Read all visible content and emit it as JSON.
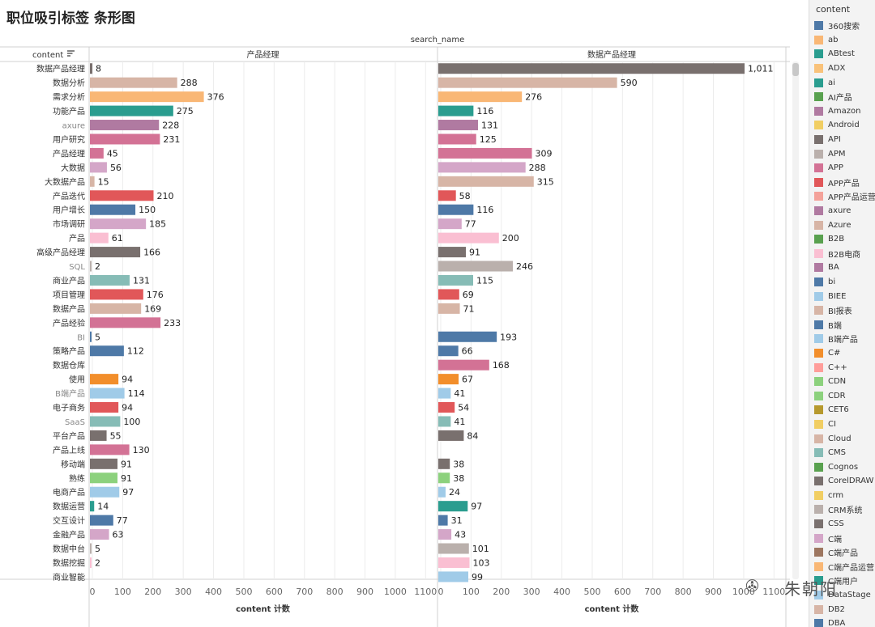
{
  "title": "职位吸引标签 条形图",
  "header_field": "search_name",
  "row_header": "content",
  "sort_icon": "sort-icon",
  "legend": {
    "title": "content",
    "items": [
      {
        "label": "360搜索",
        "color": "#4e79a7"
      },
      {
        "label": "ab",
        "color": "#f9b775"
      },
      {
        "label": "ABtest",
        "color": "#2a9d8f"
      },
      {
        "label": "ADX",
        "color": "#f9c27a"
      },
      {
        "label": "ai",
        "color": "#2a9d8f"
      },
      {
        "label": "AI产品",
        "color": "#59a14f"
      },
      {
        "label": "Amazon",
        "color": "#b07aa1"
      },
      {
        "label": "Android",
        "color": "#f1ce63"
      },
      {
        "label": "API",
        "color": "#79706e"
      },
      {
        "label": "APM",
        "color": "#bab0ac"
      },
      {
        "label": "APP",
        "color": "#d37295"
      },
      {
        "label": "APP产品",
        "color": "#e15759"
      },
      {
        "label": "APP产品运营",
        "color": "#f4a29a"
      },
      {
        "label": "axure",
        "color": "#b07aa1"
      },
      {
        "label": "Azure",
        "color": "#d7b5a6"
      },
      {
        "label": "B2B",
        "color": "#59a14f"
      },
      {
        "label": "B2B电商",
        "color": "#fabfd2"
      },
      {
        "label": "BA",
        "color": "#b07aa1"
      },
      {
        "label": "bi",
        "color": "#4e79a7"
      },
      {
        "label": "BIEE",
        "color": "#a0cbe8"
      },
      {
        "label": "BI报表",
        "color": "#d7b5a6"
      },
      {
        "label": "B端",
        "color": "#4e79a7"
      },
      {
        "label": "B端产品",
        "color": "#a0cbe8"
      },
      {
        "label": "C#",
        "color": "#f28e2b"
      },
      {
        "label": "C++",
        "color": "#ff9d9a"
      },
      {
        "label": "CDN",
        "color": "#8cd17d"
      },
      {
        "label": "CDR",
        "color": "#8cd17d"
      },
      {
        "label": "CET6",
        "color": "#b6992d"
      },
      {
        "label": "CI",
        "color": "#f1ce63"
      },
      {
        "label": "Cloud",
        "color": "#d7b5a6"
      },
      {
        "label": "CMS",
        "color": "#86bcb6"
      },
      {
        "label": "Cognos",
        "color": "#59a14f"
      },
      {
        "label": "CorelDRAW",
        "color": "#79706e"
      },
      {
        "label": "crm",
        "color": "#f1ce63"
      },
      {
        "label": "CRM系统",
        "color": "#bab0ac"
      },
      {
        "label": "CSS",
        "color": "#79706e"
      },
      {
        "label": "C端",
        "color": "#d4a6c8"
      },
      {
        "label": "C端产品",
        "color": "#9d7660"
      },
      {
        "label": "C端产品运营",
        "color": "#f9b775"
      },
      {
        "label": "C端用户",
        "color": "#2a9d8f"
      },
      {
        "label": "DataStage",
        "color": "#a0cbe8"
      },
      {
        "label": "DB2",
        "color": "#d7b5a6"
      },
      {
        "label": "DBA",
        "color": "#4e79a7"
      }
    ]
  },
  "watermark": {
    "icon": "wechat-icon",
    "text": "朱朝阳"
  },
  "chart_data": {
    "type": "bar",
    "orientation": "horizontal",
    "categories": [
      "数据产品经理",
      "数据分析",
      "需求分析",
      "功能产品",
      "axure",
      "用户研究",
      "产品经理",
      "大数据",
      "大数据产品",
      "产品迭代",
      "用户增长",
      "市场调研",
      "产品",
      "高级产品经理",
      "SQL",
      "商业产品",
      "项目管理",
      "数据产品",
      "产品经验",
      "BI",
      "策略产品",
      "数据仓库",
      "使用",
      "B端产品",
      "电子商务",
      "SaaS",
      "平台产品",
      "产品上线",
      "移动端",
      "熟练",
      "电商产品",
      "数据运营",
      "交互设计",
      "金融产品",
      "数据中台",
      "数据挖掘",
      "商业智能"
    ],
    "colors": [
      "#79706e",
      "#d7b5a6",
      "#f9b775",
      "#2a9d8f",
      "#b07aa1",
      "#d37295",
      "#d37295",
      "#d4a6c8",
      "#d7b5a6",
      "#e15759",
      "#4e79a7",
      "#d4a6c8",
      "#fabfd2",
      "#79706e",
      "#bab0ac",
      "#86bcb6",
      "#e15759",
      "#d7b5a6",
      "#d37295",
      "#4e79a7",
      "#4e79a7",
      "#d37295",
      "#f28e2b",
      "#a0cbe8",
      "#e15759",
      "#86bcb6",
      "#79706e",
      "#d37295",
      "#79706e",
      "#8cd17d",
      "#a0cbe8",
      "#2a9d8f",
      "#4e79a7",
      "#d4a6c8",
      "#bab0ac",
      "#fabfd2",
      "#a0cbe8"
    ],
    "panels": [
      {
        "name": "产品经理",
        "values": [
          8,
          288,
          376,
          275,
          228,
          231,
          45,
          56,
          15,
          210,
          150,
          185,
          61,
          166,
          2,
          131,
          176,
          169,
          233,
          5,
          112,
          null,
          94,
          114,
          94,
          100,
          55,
          130,
          91,
          91,
          97,
          14,
          77,
          63,
          5,
          2,
          null
        ]
      },
      {
        "name": "数据产品经理",
        "values": [
          1011,
          590,
          276,
          116,
          131,
          125,
          309,
          288,
          315,
          58,
          116,
          77,
          200,
          91,
          246,
          115,
          69,
          71,
          null,
          193,
          66,
          168,
          67,
          41,
          54,
          41,
          84,
          null,
          38,
          38,
          24,
          97,
          31,
          43,
          101,
          103,
          99
        ]
      }
    ],
    "xlabel": "content 计数",
    "xlim": [
      0,
      1150
    ],
    "xticks": [
      0,
      100,
      200,
      300,
      400,
      500,
      600,
      700,
      800,
      900,
      1000,
      1100
    ],
    "grid": true,
    "legend": "right"
  }
}
